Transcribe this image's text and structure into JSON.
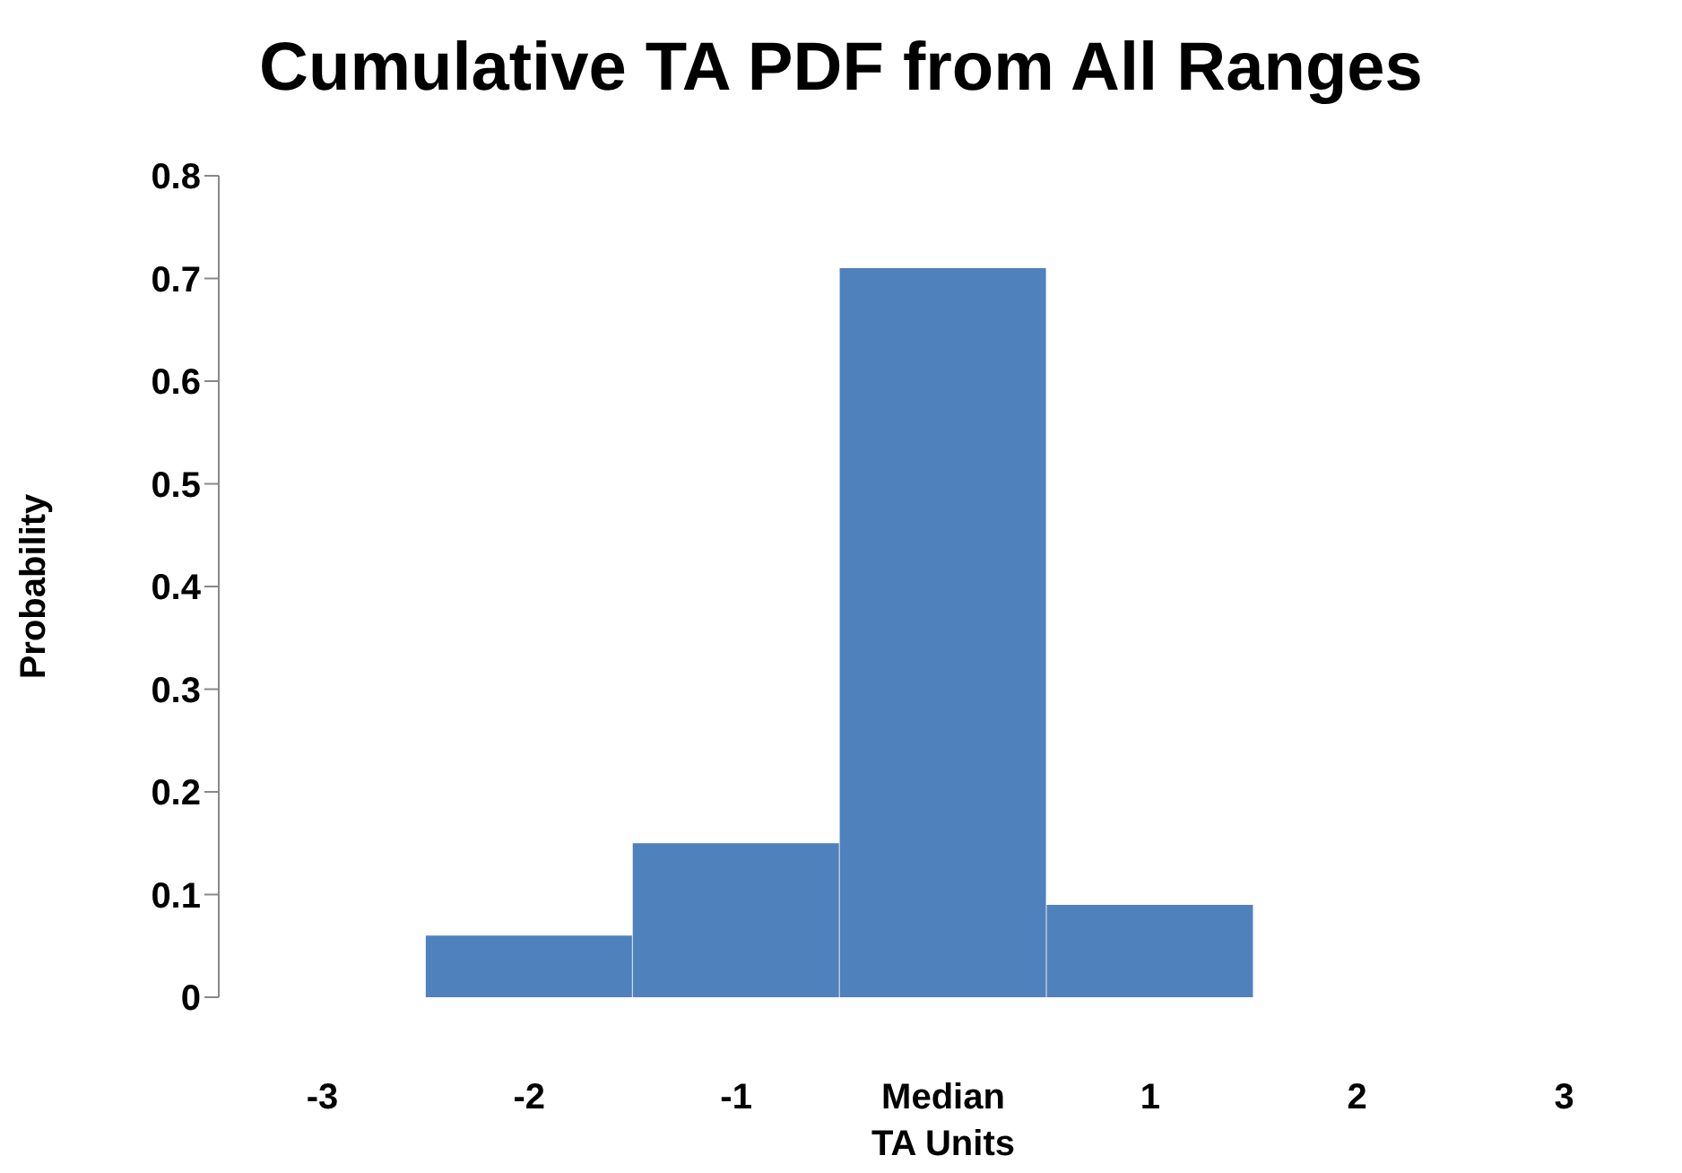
{
  "chart_data": {
    "type": "bar",
    "title": "Cumulative TA PDF from All Ranges",
    "xlabel": "TA Units",
    "ylabel": "Probability",
    "categories": [
      "-3",
      "-2",
      "-1",
      "Median",
      "1",
      "2",
      "3"
    ],
    "values": [
      0,
      0.06,
      0.15,
      0.71,
      0.09,
      0,
      0
    ],
    "color": "#4f81bd",
    "ylim": [
      0,
      0.8
    ],
    "yticks": [
      0,
      0.1,
      0.2,
      0.3,
      0.4,
      0.5,
      0.6,
      0.7,
      0.8
    ],
    "grid": false
  }
}
